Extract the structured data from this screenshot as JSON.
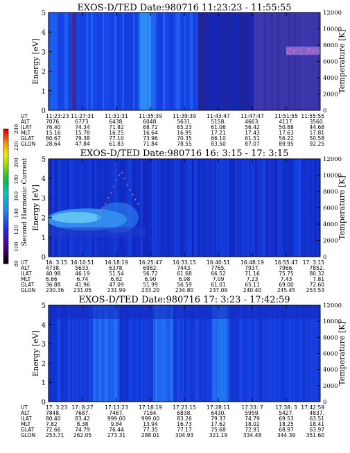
{
  "chart_data": [
    {
      "type": "heatmap",
      "title": "EXOS-D/TED   Date:980716   11:23:23 - 11:55:55",
      "ylabel": "Energy [eV]",
      "y2label": "Temperature [K]",
      "ylim": [
        0,
        5
      ],
      "y2lim": [
        0,
        12000
      ],
      "yticks": [
        "0",
        "1",
        "2",
        "3",
        "4",
        "5"
      ],
      "y2ticks": [
        "0",
        "2000",
        "4000",
        "6000",
        "8000",
        "10000",
        "12000"
      ],
      "row_labels": [
        "UT",
        "ALT",
        "ILAT",
        "MLT",
        "GLAT",
        "GLON"
      ],
      "columns": [
        [
          "11:23:23",
          "7076.",
          "76.40",
          "15.16",
          "80.67",
          "28.64"
        ],
        [
          "11:27:31",
          "6773.",
          "74.34",
          "15.78",
          "79.38",
          "47.84"
        ],
        [
          "11:31:31",
          "6438.",
          "71.82",
          "16.25",
          "77.10",
          "61.83"
        ],
        [
          "11:35:39",
          "6048.",
          "68.72",
          "16.64",
          "73.96",
          "71.84"
        ],
        [
          "11:39:39",
          "5631.",
          "65.23",
          "16.95",
          "70.35",
          "78.55"
        ],
        [
          "11:43:47",
          "5158.",
          "61.06",
          "17.21",
          "66.10",
          "83.50"
        ],
        [
          "11:47:47",
          "4663.",
          "56.42",
          "17.43",
          "61.51",
          "87.07"
        ],
        [
          "11:51:55",
          "4117.",
          "50.88",
          "17.63",
          "56.22",
          "89.95"
        ],
        [
          "11:55:55",
          "3560.",
          "44.68",
          "17.81",
          "50.58",
          "92.25"
        ]
      ],
      "temperature_band": {
        "start_ut": "11:51:55",
        "end_ut": "11:55:55",
        "temperature_k": 7300
      }
    },
    {
      "type": "heatmap",
      "title": "EXOS-D/TED   Date:980716   16: 3:15 - 17: 3:15",
      "ylabel": "Energy [eV]",
      "y2label": "Temperature [K]",
      "ylim": [
        0,
        5
      ],
      "y2lim": [
        0,
        12000
      ],
      "yticks": [
        "0",
        "1",
        "2",
        "3",
        "4",
        "5"
      ],
      "y2ticks": [
        "0",
        "2000",
        "4000",
        "6000",
        "8000",
        "10000",
        "12000"
      ],
      "row_labels": [
        "UT",
        "ALT",
        "ILAT",
        "MLT",
        "GLAT",
        "GLON"
      ],
      "columns": [
        [
          "16: 3:15",
          "4738.",
          "40.98",
          "6.66",
          "36.88",
          "230.36"
        ],
        [
          "16:10:51",
          "5633.",
          "46.19",
          "6.74",
          "41.96",
          "231.05"
        ],
        [
          "16:18:19",
          "6378.",
          "51.54",
          "6.82",
          "47.09",
          "231.99"
        ],
        [
          "16:25:47",
          "6982.",
          "56.72",
          "6.90",
          "51.99",
          "233.20"
        ],
        [
          "16:33:15",
          "7443.",
          "61.68",
          "6.98",
          "56.59",
          "234.80"
        ],
        [
          "16:40:51",
          "7765.",
          "66.52",
          "7.09",
          "61.01",
          "237.09"
        ],
        [
          "16:48:19",
          "7937.",
          "71.16",
          "7.23",
          "65.11",
          "240.40"
        ],
        [
          "16:55:47",
          "7966.",
          "75.75",
          "7.43",
          "69.00",
          "245.45"
        ],
        [
          "17: 3:15",
          "7852.",
          "80.32",
          "7.81",
          "72.60",
          "253.53"
        ]
      ],
      "colorbar": {
        "label": "Second Harmonic Current",
        "ticks": [
          "80",
          "100",
          "120",
          "140",
          "160",
          "180",
          "200",
          "220",
          "240"
        ],
        "range": [
          80,
          240
        ]
      },
      "temperature_points": [
        [
          0.19,
          5600
        ],
        [
          0.2,
          6000
        ],
        [
          0.21,
          6500
        ],
        [
          0.22,
          7200
        ],
        [
          0.23,
          7800
        ],
        [
          0.24,
          8600
        ],
        [
          0.25,
          9400
        ],
        [
          0.26,
          10000
        ],
        [
          0.27,
          10300
        ],
        [
          0.28,
          9600
        ],
        [
          0.29,
          8800
        ],
        [
          0.3,
          8200
        ],
        [
          0.31,
          7600
        ],
        [
          0.32,
          7000
        ],
        [
          0.33,
          6500
        ]
      ]
    },
    {
      "type": "heatmap",
      "title": "EXOS-D/TED   Date:980716   17: 3:23 - 17:42:59",
      "ylabel": "Energy [eV]",
      "y2label": "Temperature [K]",
      "ylim": [
        0,
        5
      ],
      "y2lim": [
        0,
        12000
      ],
      "yticks": [
        "0",
        "1",
        "2",
        "3",
        "4",
        "5"
      ],
      "y2ticks": [
        "0",
        "2000",
        "4000",
        "6000",
        "8000",
        "10000",
        "12000"
      ],
      "row_labels": [
        "UT",
        "ALT",
        "ILAT",
        "MLT",
        "GLAT",
        "GLON"
      ],
      "columns": [
        [
          "17: 3:23",
          "7848.",
          "80.40",
          "7.82",
          "72.66",
          "253.71"
        ],
        [
          "17: 8:27",
          "7687.",
          "83.42",
          "8.38",
          "74.79",
          "262.05"
        ],
        [
          "17:13:23",
          "7467.",
          "999.00",
          "9.84",
          "76.44",
          "273.31"
        ],
        [
          "17:18:19",
          "7184.",
          "999.00",
          "13.94",
          "77.35",
          "288.01"
        ],
        [
          "17:23:15",
          "6838.",
          "83.26",
          "16.73",
          "77.17",
          "304.93"
        ],
        [
          "17:28:11",
          "6430.",
          "79.37",
          "17.62",
          "75.68",
          "321.19"
        ],
        [
          "17:33: 7",
          "5959.",
          "74.79",
          "18.02",
          "72.91",
          "334.48"
        ],
        [
          "17:38: 3",
          "5427.",
          "69.53",
          "18.25",
          "68.97",
          "344.39"
        ],
        [
          "17:42:59",
          "4837.",
          "63.51",
          "18.41",
          "63.97",
          "351.60"
        ]
      ]
    }
  ]
}
